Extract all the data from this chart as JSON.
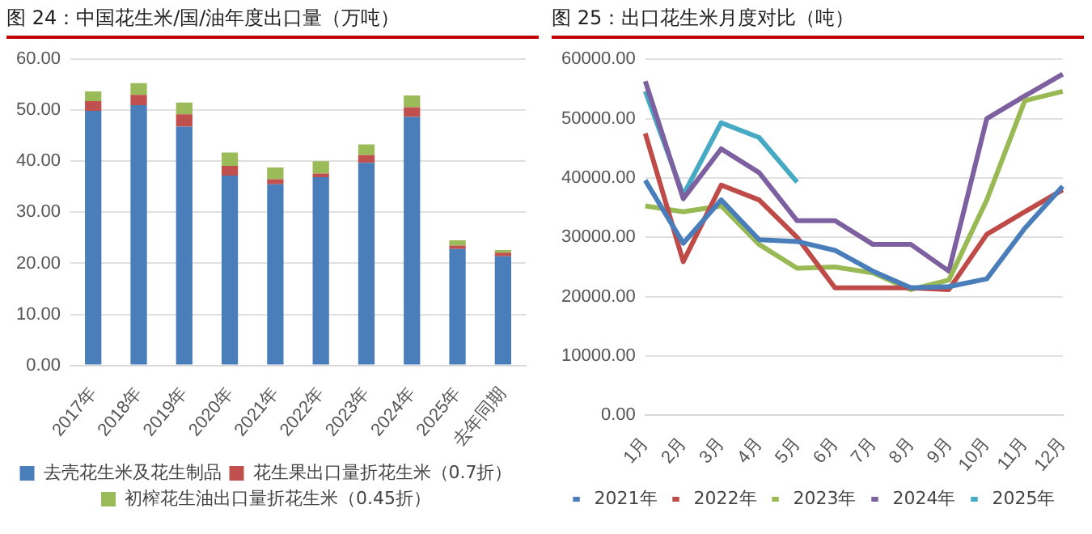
{
  "chart_data": [
    {
      "type": "bar",
      "title": "图 24：中国花生米/国/油年度出口量（万吨）",
      "stacked": true,
      "categories": [
        "2017年",
        "2018年",
        "2019年",
        "2020年",
        "2021年",
        "2022年",
        "2023年",
        "2024年",
        "2025年",
        "去年同期"
      ],
      "series": [
        {
          "name": "去壳花生米及花生制品",
          "color": "#4a7ebb",
          "values": [
            49.9,
            51.0,
            46.8,
            37.2,
            35.5,
            36.9,
            39.7,
            48.7,
            22.8,
            21.4
          ]
        },
        {
          "name": "花生果出口量折花生米（0.7折）",
          "color": "#c0504d",
          "values": [
            1.9,
            2.0,
            2.4,
            1.9,
            1.0,
            0.7,
            1.5,
            1.9,
            0.7,
            0.7
          ]
        },
        {
          "name": "初榨花生油出口量折花生米（0.45折）",
          "color": "#9bbb59",
          "values": [
            1.9,
            2.3,
            2.3,
            2.6,
            2.3,
            2.4,
            2.1,
            2.3,
            1.0,
            0.5
          ]
        }
      ],
      "ylim": [
        0,
        60
      ],
      "yticks": [
        {
          "value": 0,
          "label": "0.00"
        },
        {
          "value": 10,
          "label": "10.00"
        },
        {
          "value": 20,
          "label": "20.00"
        },
        {
          "value": 30,
          "label": "30.00"
        },
        {
          "value": 40,
          "label": "40.00"
        },
        {
          "value": 50,
          "label": "50.00"
        },
        {
          "value": 60,
          "label": "60.00"
        }
      ],
      "grid": "y",
      "legend": "bottom"
    },
    {
      "type": "line",
      "title": "图 25：出口花生米月度对比（吨）",
      "marker": "none",
      "categories": [
        "1月",
        "2月",
        "3月",
        "4月",
        "5月",
        "6月",
        "7月",
        "8月",
        "9月",
        "10月",
        "11月",
        "12月"
      ],
      "series": [
        {
          "name": "2021年",
          "color": "#4a7ebb",
          "values": [
            39600,
            29000,
            36300,
            29600,
            29300,
            27800,
            24300,
            21500,
            21700,
            23000,
            31500,
            38600
          ]
        },
        {
          "name": "2022年",
          "color": "#be4b48",
          "values": [
            47500,
            25900,
            38800,
            36300,
            30000,
            21500,
            21500,
            21500,
            21200,
            30500,
            34300,
            38000
          ]
        },
        {
          "name": "2023年",
          "color": "#98b954",
          "values": [
            35300,
            34300,
            35300,
            28800,
            24800,
            25000,
            24000,
            21200,
            22800,
            36300,
            53000,
            54600
          ]
        },
        {
          "name": "2024年",
          "color": "#7d60a0",
          "values": [
            56300,
            36500,
            44900,
            40900,
            32800,
            32800,
            28800,
            28800,
            24300,
            50000,
            53800,
            57500
          ]
        },
        {
          "name": "2025年",
          "color": "#46aac5",
          "values": [
            54600,
            37100,
            49300,
            46800,
            39300,
            null,
            null,
            null,
            null,
            null,
            null,
            null
          ]
        }
      ],
      "ylim": [
        0,
        60000
      ],
      "yticks": [
        {
          "value": 0,
          "label": "0.00"
        },
        {
          "value": 10000,
          "label": "10000.00"
        },
        {
          "value": 20000,
          "label": "20000.00"
        },
        {
          "value": 30000,
          "label": "30000.00"
        },
        {
          "value": 40000,
          "label": "40000.00"
        },
        {
          "value": 50000,
          "label": "50000.00"
        },
        {
          "value": 60000,
          "label": "60000.00"
        }
      ],
      "grid": "y",
      "legend": "bottom"
    }
  ]
}
